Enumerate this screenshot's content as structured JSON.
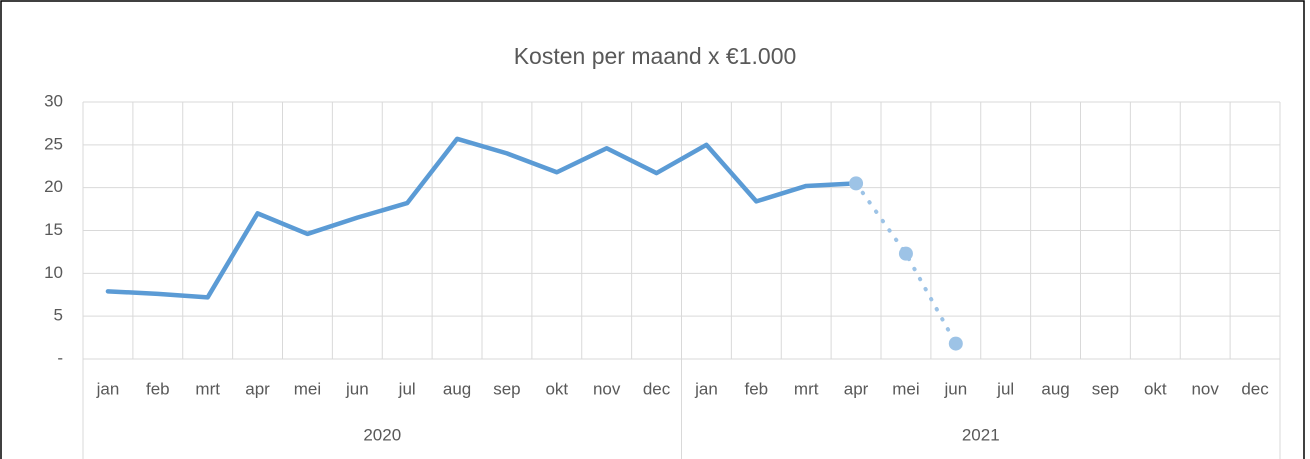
{
  "chart_data": {
    "type": "line",
    "title": "Kosten per maand x €1.000",
    "categories": [
      "jan",
      "feb",
      "mrt",
      "apr",
      "mei",
      "jun",
      "jul",
      "aug",
      "sep",
      "okt",
      "nov",
      "dec",
      "jan",
      "feb",
      "mrt",
      "apr",
      "mei",
      "jun",
      "jul",
      "aug",
      "sep",
      "okt",
      "nov",
      "dec"
    ],
    "x_groups": [
      "2020",
      "2021"
    ],
    "series": [
      {
        "color": "#5b9bd5",
        "line_style": "solid",
        "values": [
          7.9,
          7.6,
          7.2,
          17.0,
          14.6,
          16.5,
          18.2,
          25.7,
          24.0,
          21.8,
          24.6,
          21.7,
          25.0,
          18.4,
          20.2,
          20.5,
          null,
          null,
          null,
          null,
          null,
          null,
          null,
          null
        ]
      },
      {
        "color": "#9dc3e6",
        "line_style": "dotted",
        "markers": true,
        "values": [
          null,
          null,
          null,
          null,
          null,
          null,
          null,
          null,
          null,
          null,
          null,
          null,
          null,
          null,
          null,
          20.5,
          12.3,
          1.8,
          null,
          null,
          null,
          null,
          null,
          null
        ]
      }
    ],
    "ylim": [
      0,
      30
    ],
    "yticks": [
      {
        "value": 0,
        "label": "-"
      },
      5,
      10,
      15,
      20,
      25,
      30
    ],
    "grid": true
  }
}
